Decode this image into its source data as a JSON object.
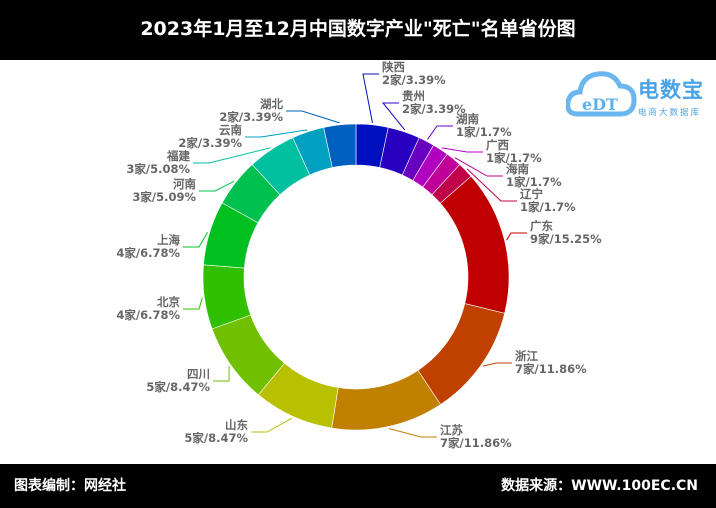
{
  "title": "2023年1月至12月中国数字产业\"死亡\"名单省份图",
  "footer": {
    "left": "图表编制：网经社",
    "right": "数据来源：WWW.100EC.CN"
  },
  "logo": {
    "name": "电数宝",
    "subtitle": "电商大数据库",
    "mark": "eDT"
  },
  "chart_data": {
    "type": "pie",
    "variant": "donut",
    "title": "2023年1月至12月中国数字产业\"死亡\"名单省份图",
    "unit": "家",
    "slices": [
      {
        "name": "陕西",
        "value": 2,
        "percent": "3.39%",
        "label": "2家/3.39%",
        "color": "#0010c0"
      },
      {
        "name": "贵州",
        "value": 2,
        "percent": "3.39%",
        "label": "2家/3.39%",
        "color": "#2800c0"
      },
      {
        "name": "湖南",
        "value": 1,
        "percent": "1.7%",
        "label": "1家/1.7%",
        "color": "#6800c0"
      },
      {
        "name": "广西",
        "value": 1,
        "percent": "1.7%",
        "label": "1家/1.7%",
        "color": "#b000c0"
      },
      {
        "name": "海南",
        "value": 1,
        "percent": "1.7%",
        "label": "1家/1.7%",
        "color": "#c00098"
      },
      {
        "name": "辽宁",
        "value": 1,
        "percent": "1.7%",
        "label": "1家/1.7%",
        "color": "#c00048"
      },
      {
        "name": "广东",
        "value": 9,
        "percent": "15.25%",
        "label": "9家/15.25%",
        "color": "#c00000"
      },
      {
        "name": "浙江",
        "value": 7,
        "percent": "11.86%",
        "label": "7家/11.86%",
        "color": "#c04000"
      },
      {
        "name": "江苏",
        "value": 7,
        "percent": "11.86%",
        "label": "7家/11.86%",
        "color": "#c08000"
      },
      {
        "name": "山东",
        "value": 5,
        "percent": "8.47%",
        "label": "5家/8.47%",
        "color": "#b8c000"
      },
      {
        "name": "四川",
        "value": 5,
        "percent": "8.47%",
        "label": "5家/8.47%",
        "color": "#70c000"
      },
      {
        "name": "北京",
        "value": 4,
        "percent": "6.78%",
        "label": "4家/6.78%",
        "color": "#30c000"
      },
      {
        "name": "上海",
        "value": 4,
        "percent": "6.78%",
        "label": "4家/6.78%",
        "color": "#00c020"
      },
      {
        "name": "河南",
        "value": 3,
        "percent": "5.09%",
        "label": "3家/5.09%",
        "color": "#00c050"
      },
      {
        "name": "福建",
        "value": 3,
        "percent": "5.08%",
        "label": "3家/5.08%",
        "color": "#00c0a0"
      },
      {
        "name": "云南",
        "value": 2,
        "percent": "3.39%",
        "label": "2家/3.39%",
        "color": "#00a0c0"
      },
      {
        "name": "湖北",
        "value": 2,
        "percent": "3.39%",
        "label": "2家/3.39%",
        "color": "#0060c0"
      }
    ]
  }
}
